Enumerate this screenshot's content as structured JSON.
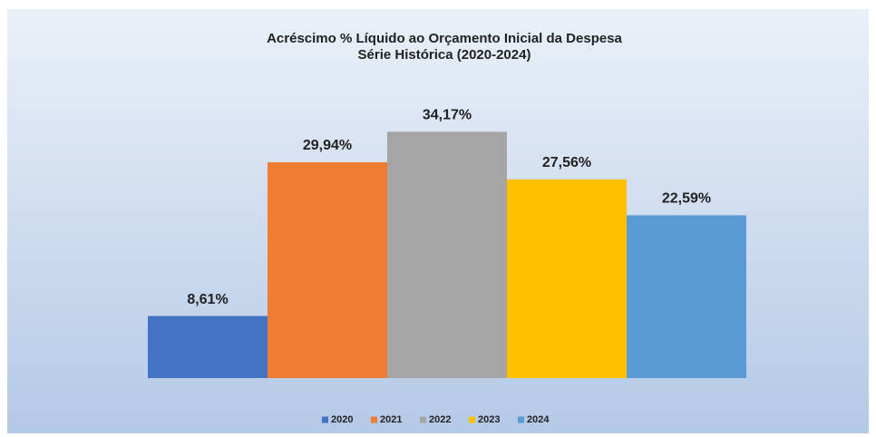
{
  "chart_data": {
    "type": "bar",
    "title": "Acréscimo % Líquido ao Orçamento Inicial da Despesa",
    "subtitle": "Série Histórica (2020-2024)",
    "series": [
      {
        "name": "2020",
        "color": "#4472c4",
        "values": [
          8.61
        ],
        "value_labels": [
          "8,61%"
        ]
      },
      {
        "name": "2021",
        "color": "#ed7d31",
        "values": [
          29.94
        ],
        "value_labels": [
          "29,94%"
        ]
      },
      {
        "name": "2022",
        "color": "#a5a5a5",
        "values": [
          34.17
        ],
        "value_labels": [
          "34,17%"
        ]
      },
      {
        "name": "2023",
        "color": "#ffc000",
        "values": [
          27.56
        ],
        "value_labels": [
          "27,56%"
        ]
      },
      {
        "name": "2024",
        "color": "#5b9bd5",
        "values": [
          22.59
        ],
        "value_labels": [
          "22,59%"
        ]
      }
    ],
    "ylim": [
      0,
      40
    ],
    "legend": "bottom"
  }
}
